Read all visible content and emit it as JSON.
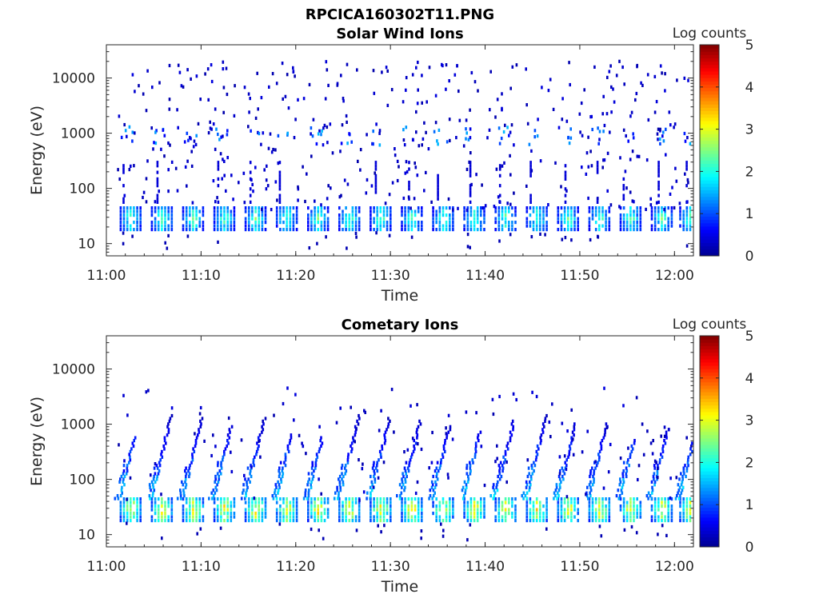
{
  "figure_title": "RPCICA160302T11.PNG",
  "colors": {
    "colormap": [
      "#00008f",
      "#0000ff",
      "#0080ff",
      "#00ffff",
      "#80ff80",
      "#ffff00",
      "#ff8000",
      "#ff0000",
      "#800000"
    ],
    "axis": "#262626",
    "background": "#ffffff"
  },
  "chart_data": [
    {
      "type": "heatmap",
      "title": "Solar Wind Ions",
      "xlabel": "Time",
      "ylabel": "Energy (eV)",
      "colorbar_label": "Log counts",
      "colorbar_ticks": [
        "0",
        "1",
        "2",
        "3",
        "4",
        "5"
      ],
      "clim": [
        0,
        5
      ],
      "y_scale": "log",
      "ylim": [
        6,
        40000
      ],
      "y_ticks": [
        10,
        100,
        1000,
        10000
      ],
      "y_tick_labels": [
        "10",
        "100",
        "1000",
        "10000"
      ],
      "xlim": [
        "11:00",
        "12:02"
      ],
      "x_tick_labels": [
        "11:00",
        "11:10",
        "11:20",
        "11:30",
        "11:40",
        "11:50",
        "12:00"
      ],
      "scan_times_min": [
        2.5,
        5.8,
        9.1,
        12.4,
        15.7,
        19.0,
        22.3,
        25.6,
        28.9,
        32.2,
        35.5,
        38.8,
        42.1,
        45.4,
        48.7,
        52.0,
        55.3,
        58.6,
        61.6
      ],
      "features": [
        {
          "name": "main ion band",
          "energy_eV": [
            18,
            45
          ],
          "peak_log_counts": 2.4
        },
        {
          "name": "upper band",
          "energy_eV": [
            600,
            1300
          ],
          "peak_log_counts": 1.3
        },
        {
          "name": "sparse background",
          "energy_eV": [
            40,
            20000
          ],
          "peak_log_counts": 0.3
        }
      ]
    },
    {
      "type": "heatmap",
      "title": "Cometary Ions",
      "xlabel": "Time",
      "ylabel": "Energy (eV)",
      "colorbar_label": "Log counts",
      "colorbar_ticks": [
        "0",
        "1",
        "2",
        "3",
        "4",
        "5"
      ],
      "clim": [
        0,
        5
      ],
      "y_scale": "log",
      "ylim": [
        6,
        40000
      ],
      "y_ticks": [
        10,
        100,
        1000,
        10000
      ],
      "y_tick_labels": [
        "10",
        "100",
        "1000",
        "10000"
      ],
      "xlim": [
        "11:00",
        "12:02"
      ],
      "x_tick_labels": [
        "11:00",
        "11:10",
        "11:20",
        "11:30",
        "11:40",
        "11:50",
        "12:00"
      ],
      "scan_times_min": [
        2.5,
        5.8,
        9.1,
        12.4,
        15.7,
        19.0,
        22.3,
        25.6,
        28.9,
        32.2,
        35.5,
        38.8,
        42.1,
        45.4,
        48.7,
        52.0,
        55.3,
        58.6,
        61.6
      ],
      "features": [
        {
          "name": "main ion band",
          "energy_eV": [
            18,
            45
          ],
          "peak_log_counts": 3.4
        },
        {
          "name": "energy dispersion arcs",
          "energy_eV": [
            45,
            1500
          ],
          "peak_log_counts": 1.8
        },
        {
          "name": "sparse background",
          "energy_eV": [
            40,
            4500
          ],
          "peak_log_counts": 0.3
        }
      ]
    }
  ]
}
